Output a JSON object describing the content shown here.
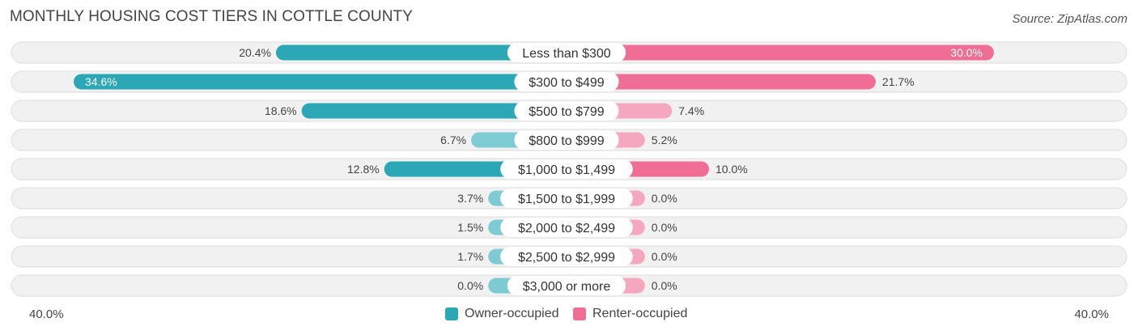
{
  "title": "MONTHLY HOUSING COST TIERS IN COTTLE COUNTY",
  "source": "Source: ZipAtlas.com",
  "colors": {
    "owner_strong": "#2ba7b5",
    "owner_light": "#7ecbd4",
    "renter_strong": "#f06d96",
    "renter_light": "#f6a7c0",
    "row_bg": "#f1f1f1",
    "row_border": "#dedede"
  },
  "chart_data": {
    "type": "bar",
    "orientation": "horizontal-diverging",
    "categories": [
      "Less than $300",
      "$300 to $499",
      "$500 to $799",
      "$800 to $999",
      "$1,000 to $1,499",
      "$1,500 to $1,999",
      "$2,000 to $2,499",
      "$2,500 to $2,999",
      "$3,000 or more"
    ],
    "series": [
      {
        "name": "Owner-occupied",
        "values": [
          20.4,
          34.6,
          18.6,
          6.7,
          12.8,
          3.7,
          1.5,
          1.7,
          0.0
        ],
        "labels": [
          "20.4%",
          "34.6%",
          "18.6%",
          "6.7%",
          "12.8%",
          "3.7%",
          "1.5%",
          "1.7%",
          "0.0%"
        ]
      },
      {
        "name": "Renter-occupied",
        "values": [
          30.0,
          21.7,
          7.4,
          5.2,
          10.0,
          0.0,
          0.0,
          0.0,
          0.0
        ],
        "labels": [
          "30.0%",
          "21.7%",
          "7.4%",
          "5.2%",
          "10.0%",
          "0.0%",
          "0.0%",
          "0.0%",
          "0.0%"
        ]
      }
    ],
    "xlim": [
      -40,
      40
    ],
    "axis_labels": {
      "left": "40.0%",
      "right": "40.0%"
    },
    "legend_position": "bottom-center",
    "grid": false
  }
}
